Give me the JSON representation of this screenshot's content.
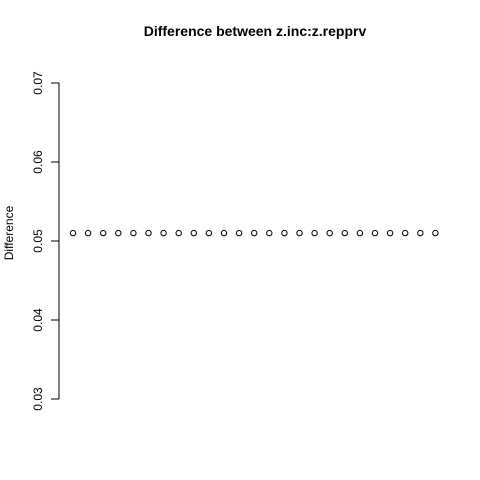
{
  "chart_data": {
    "type": "scatter",
    "title": "Difference between z.inc:z.repprv",
    "xlabel": "",
    "ylabel": "Difference",
    "ylim": [
      0.03,
      0.07
    ],
    "yticks": [
      "0.03",
      "0.04",
      "0.05",
      "0.06",
      "0.07"
    ],
    "grid": false,
    "point_marker": "open-circle",
    "x": [
      1,
      2,
      3,
      4,
      5,
      6,
      7,
      8,
      9,
      10,
      11,
      12,
      13,
      14,
      15,
      16,
      17,
      18,
      19,
      20,
      21,
      22,
      23,
      24,
      25
    ],
    "y": [
      0.051,
      0.051,
      0.051,
      0.051,
      0.051,
      0.051,
      0.051,
      0.051,
      0.051,
      0.051,
      0.051,
      0.051,
      0.051,
      0.051,
      0.051,
      0.051,
      0.051,
      0.051,
      0.051,
      0.051,
      0.051,
      0.051,
      0.051,
      0.051,
      0.051
    ]
  }
}
